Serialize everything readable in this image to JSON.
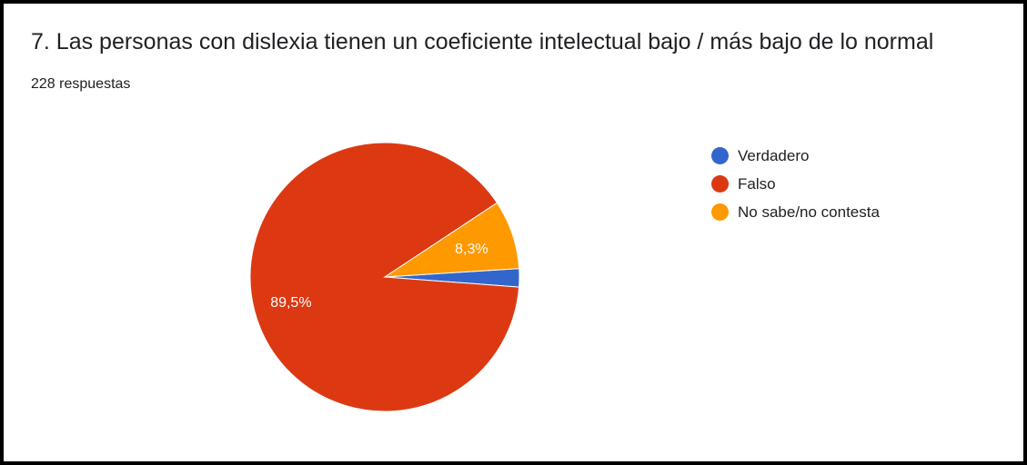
{
  "header": {
    "title": "7. Las personas con dislexia tienen un coeficiente intelectual bajo / más bajo de lo normal",
    "responses": "228 respuestas"
  },
  "chart_data": {
    "type": "pie",
    "title": "7. Las personas con dislexia tienen un coeficiente intelectual bajo / más bajo de lo normal",
    "slices": [
      {
        "name": "Verdadero",
        "value": 2.2,
        "color": "#3366cc",
        "label": ""
      },
      {
        "name": "Falso",
        "value": 89.5,
        "color": "#dc3912",
        "label": "89,5%"
      },
      {
        "name": "No sabe/no contesta",
        "value": 8.3,
        "color": "#ff9900",
        "label": "8,3%"
      }
    ],
    "legend_position": "right"
  }
}
